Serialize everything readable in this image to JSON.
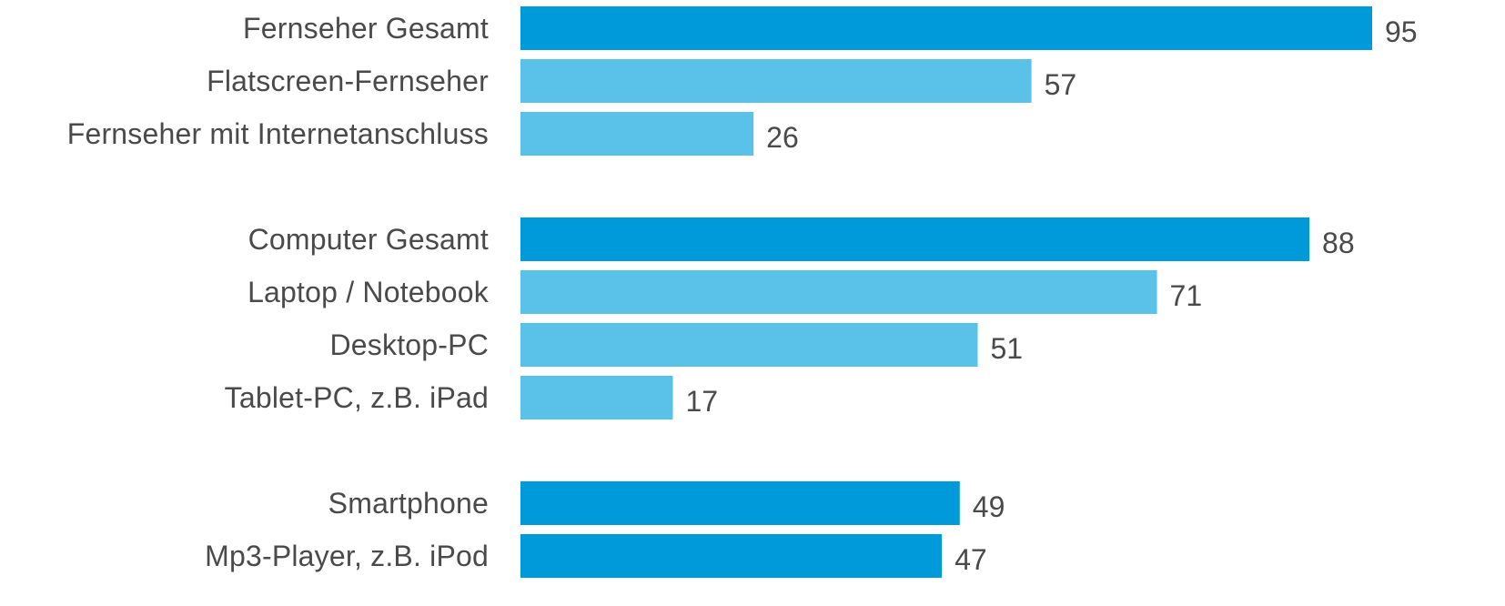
{
  "chart_data": {
    "type": "bar",
    "orientation": "horizontal",
    "title": "",
    "xlabel": "",
    "ylabel": "",
    "xlim": [
      0,
      95
    ],
    "grid": false,
    "legend": "none",
    "colors": {
      "primary": "#0099d9",
      "secondary": "#5ac1e8",
      "text": "#4a4a4a"
    },
    "groups": [
      {
        "items": [
          {
            "label": "Fernseher Gesamt",
            "value": 95,
            "style": "primary"
          },
          {
            "label": "Flatscreen-Fernseher",
            "value": 57,
            "style": "secondary"
          },
          {
            "label": "Fernseher mit Internetanschluss",
            "value": 26,
            "style": "secondary"
          }
        ]
      },
      {
        "items": [
          {
            "label": "Computer Gesamt",
            "value": 88,
            "style": "primary"
          },
          {
            "label": "Laptop / Notebook",
            "value": 71,
            "style": "secondary"
          },
          {
            "label": "Desktop-PC",
            "value": 51,
            "style": "secondary"
          },
          {
            "label": "Tablet-PC, z.B. iPad",
            "value": 17,
            "style": "secondary"
          }
        ]
      },
      {
        "items": [
          {
            "label": "Smartphone",
            "value": 49,
            "style": "primary"
          },
          {
            "label": "Mp3-Player, z.B. iPod",
            "value": 47,
            "style": "primary"
          }
        ]
      }
    ]
  }
}
